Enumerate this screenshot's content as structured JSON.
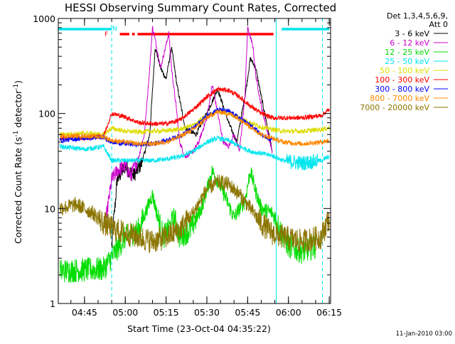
{
  "chart_data": {
    "type": "line",
    "title": "HESSI Observing Summary Count Rates, Corrected",
    "xlabel": "Start Time (23-Oct-04 04:35:22)",
    "ylabel": "Corrected Count Rate (s",
    "ylabel_sup1": "-1",
    "ylabel_mid": " detector",
    "ylabel_sup2": "-1",
    "ylabel_end": ")",
    "x_scale": "time",
    "y_scale": "log",
    "xlim": [
      "04:35:22",
      "06:15:30"
    ],
    "ylim": [
      1,
      1000
    ],
    "x_ticks": [
      "04:45",
      "05:00",
      "05:15",
      "05:30",
      "05:45",
      "06:00",
      "06:15"
    ],
    "y_ticks": [
      "1",
      "10",
      "100",
      "1000"
    ],
    "grid": false,
    "legend_placement": "right-outside",
    "legend_header": [
      "Det 1,3,4,5,6,9,",
      "Att 0"
    ],
    "footer_date": "11-Jan-2010 03:00",
    "flag_labels": [
      "F",
      "N"
    ],
    "flag_bars": [
      {
        "color": "#00e5ee",
        "segments": [
          [
            "04:35:22",
            "04:55:00"
          ],
          [
            "05:57:30",
            "06:15:00"
          ]
        ]
      },
      {
        "color": "#ff0000",
        "segments": [
          [
            "04:58:00",
            "05:01:30"
          ],
          [
            "05:02:30",
            "05:03:30"
          ],
          [
            "05:04:30",
            "05:54:30"
          ]
        ]
      }
    ],
    "markers": [
      {
        "time": "04:55:00",
        "color": "#00e5ee",
        "style": "dashed"
      },
      {
        "time": "05:55:30",
        "color": "#00e5ee",
        "style": "solid"
      },
      {
        "time": "06:12:30",
        "color": "#00e5ee",
        "style": "dashed"
      }
    ],
    "series": [
      {
        "name": "3 - 6 keV",
        "color": "#000000",
        "x": [
          "04:55",
          "04:57",
          "05:00",
          "05:03",
          "05:06",
          "05:09",
          "05:11",
          "05:13",
          "05:15",
          "05:17",
          "05:19",
          "05:22",
          "05:26",
          "05:30",
          "05:34",
          "05:38",
          "05:41",
          "05:44",
          "05:46",
          "05:48",
          "05:50",
          "05:52",
          "05:54"
        ],
        "y": [
          4,
          20,
          28,
          22,
          30,
          60,
          500,
          300,
          230,
          500,
          200,
          70,
          60,
          100,
          180,
          80,
          50,
          150,
          380,
          300,
          150,
          80,
          40
        ]
      },
      {
        "name": "6 - 12 keV",
        "color": "#cc00cc",
        "x": [
          "04:53",
          "04:55",
          "04:57",
          "05:00",
          "05:02",
          "05:05",
          "05:07",
          "05:09",
          "05:10",
          "05:11",
          "05:13",
          "05:14",
          "05:16",
          "05:17",
          "05:19",
          "05:20",
          "05:22",
          "05:25",
          "05:27",
          "05:30",
          "05:32",
          "05:34",
          "05:36",
          "05:38",
          "05:40",
          "05:42",
          "05:44",
          "05:45",
          "05:47",
          "05:48",
          "05:50",
          "05:52",
          "05:54"
        ],
        "y": [
          8,
          20,
          25,
          28,
          22,
          35,
          60,
          300,
          800,
          600,
          300,
          400,
          700,
          300,
          100,
          50,
          35,
          40,
          50,
          90,
          200,
          100,
          50,
          45,
          60,
          40,
          150,
          800,
          500,
          250,
          120,
          70,
          40
        ]
      },
      {
        "name": "12 - 25 keV",
        "color": "#00dd00",
        "x": [
          "04:36",
          "04:52",
          "05:00",
          "05:05",
          "05:08",
          "05:10",
          "05:12",
          "05:14",
          "05:16",
          "05:18",
          "05:20",
          "05:24",
          "05:28",
          "05:32",
          "05:36",
          "05:40",
          "05:42",
          "05:44",
          "05:46",
          "05:48",
          "05:50",
          "05:54",
          "06:00",
          "06:05",
          "06:10"
        ],
        "y": [
          2.2,
          2.3,
          5,
          6,
          10,
          14,
          8,
          5,
          6,
          8,
          5,
          6,
          10,
          25,
          15,
          8,
          10,
          12,
          25,
          15,
          10,
          9,
          4,
          3.5,
          4
        ]
      },
      {
        "name": "25 - 50 keV",
        "color": "#00e5ee",
        "x": [
          "04:36",
          "04:45",
          "04:52",
          "04:55",
          "05:00",
          "05:05",
          "05:10",
          "05:15",
          "05:20",
          "05:25",
          "05:30",
          "05:34",
          "05:38",
          "05:42",
          "05:46",
          "05:50",
          "05:54",
          "05:58",
          "06:05",
          "06:12",
          "06:15"
        ],
        "y": [
          45,
          42,
          45,
          32,
          32,
          32,
          32,
          33,
          35,
          40,
          50,
          55,
          52,
          45,
          40,
          38,
          36,
          32,
          30,
          32,
          35
        ]
      },
      {
        "name": "50 - 100 keV",
        "color": "#dddd00",
        "x": [
          "04:36",
          "04:45",
          "04:52",
          "04:55",
          "05:00",
          "05:05",
          "05:10",
          "05:15",
          "05:20",
          "05:25",
          "05:30",
          "05:34",
          "05:38",
          "05:42",
          "05:46",
          "05:50",
          "05:54",
          "05:58",
          "06:05",
          "06:12",
          "06:15"
        ],
        "y": [
          60,
          62,
          60,
          70,
          65,
          64,
          65,
          66,
          68,
          75,
          95,
          105,
          100,
          90,
          80,
          72,
          68,
          65,
          65,
          68,
          70
        ]
      },
      {
        "name": "100 - 300 keV",
        "color": "#ff0000",
        "x": [
          "04:36",
          "04:45",
          "04:52",
          "04:55",
          "05:00",
          "05:05",
          "05:10",
          "05:15",
          "05:20",
          "05:25",
          "05:30",
          "05:34",
          "05:38",
          "05:42",
          "05:46",
          "05:50",
          "05:54",
          "05:58",
          "06:05",
          "06:12",
          "06:15"
        ],
        "y": [
          55,
          55,
          58,
          100,
          92,
          80,
          78,
          78,
          85,
          110,
          150,
          180,
          175,
          150,
          120,
          100,
          90,
          90,
          90,
          95,
          110
        ]
      },
      {
        "name": "300 - 800 keV",
        "color": "#0000ff",
        "x": [
          "04:36",
          "04:45",
          "04:52",
          "04:55",
          "05:00",
          "05:05",
          "05:10",
          "05:15",
          "05:20",
          "05:25",
          "05:30",
          "05:34",
          "05:38",
          "05:42",
          "05:46",
          "05:50",
          "05:54"
        ],
        "y": [
          52,
          55,
          56,
          50,
          48,
          47,
          48,
          52,
          58,
          70,
          95,
          110,
          105,
          90,
          75,
          60,
          52
        ]
      },
      {
        "name": "800 - 7000 keV",
        "color": "#ff8800",
        "x": [
          "04:36",
          "04:45",
          "04:52",
          "04:55",
          "05:00",
          "05:05",
          "05:10",
          "05:15",
          "05:20",
          "05:25",
          "05:30",
          "05:34",
          "05:38",
          "05:42",
          "05:46",
          "05:50",
          "05:54",
          "05:58",
          "06:05",
          "06:12",
          "06:15"
        ],
        "y": [
          58,
          58,
          57,
          52,
          50,
          48,
          48,
          50,
          57,
          68,
          90,
          105,
          100,
          88,
          72,
          60,
          55,
          50,
          48,
          50,
          52
        ]
      },
      {
        "name": "7000 - 20000 keV",
        "color": "#8b7500",
        "x": [
          "04:36",
          "04:42",
          "04:48",
          "04:52",
          "04:56",
          "05:00",
          "05:05",
          "05:10",
          "05:15",
          "05:20",
          "05:25",
          "05:30",
          "05:34",
          "05:38",
          "05:42",
          "05:46",
          "05:50",
          "05:54",
          "05:58",
          "06:05",
          "06:12",
          "06:15"
        ],
        "y": [
          10,
          11,
          9,
          7,
          6,
          5.5,
          5,
          4.5,
          5,
          6,
          9,
          16,
          19,
          18,
          14,
          10,
          7,
          5.5,
          5,
          4.5,
          5,
          8
        ]
      }
    ]
  }
}
